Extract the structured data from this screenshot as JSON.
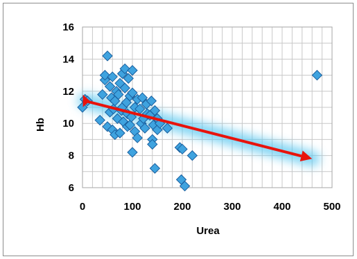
{
  "chart_data": {
    "type": "scatter",
    "xlabel": "Urea",
    "ylabel": "Hb",
    "xlim": [
      0,
      500
    ],
    "ylim": [
      6,
      16
    ],
    "x_ticks": [
      "0",
      "100",
      "200",
      "300",
      "400",
      "500"
    ],
    "y_ticks": [
      "6",
      "8",
      "10",
      "12",
      "14",
      "16"
    ],
    "grid": true,
    "legend": "none",
    "colors": {
      "marker_fill": "#3fa3df",
      "marker_stroke": "#1a5f9e",
      "trend_glow": "#5cc8f0",
      "arrow": "#e8130c",
      "grid": "#c8c8c8"
    },
    "points": [
      [
        0,
        11.0
      ],
      [
        5,
        11.5
      ],
      [
        10,
        11.4
      ],
      [
        35,
        10.2
      ],
      [
        40,
        11.8
      ],
      [
        45,
        12.7
      ],
      [
        45,
        13.0
      ],
      [
        50,
        14.2
      ],
      [
        50,
        9.8
      ],
      [
        55,
        10.7
      ],
      [
        55,
        12.3
      ],
      [
        58,
        11.6
      ],
      [
        60,
        12.9
      ],
      [
        60,
        9.6
      ],
      [
        62,
        10.9
      ],
      [
        65,
        11.4
      ],
      [
        65,
        9.3
      ],
      [
        68,
        12.0
      ],
      [
        70,
        10.3
      ],
      [
        72,
        11.8
      ],
      [
        75,
        12.5
      ],
      [
        75,
        9.4
      ],
      [
        78,
        10.8
      ],
      [
        80,
        13.1
      ],
      [
        80,
        11.0
      ],
      [
        82,
        10.1
      ],
      [
        85,
        13.4
      ],
      [
        85,
        12.2
      ],
      [
        88,
        11.3
      ],
      [
        90,
        10.6
      ],
      [
        90,
        9.8
      ],
      [
        92,
        12.8
      ],
      [
        95,
        11.7
      ],
      [
        95,
        9.9
      ],
      [
        98,
        10.4
      ],
      [
        100,
        13.3
      ],
      [
        100,
        11.9
      ],
      [
        100,
        8.2
      ],
      [
        105,
        11.0
      ],
      [
        105,
        9.5
      ],
      [
        110,
        11.5
      ],
      [
        110,
        9.1
      ],
      [
        115,
        10.9
      ],
      [
        118,
        10.0
      ],
      [
        120,
        11.6
      ],
      [
        122,
        10.3
      ],
      [
        125,
        9.7
      ],
      [
        128,
        11.2
      ],
      [
        130,
        10.6
      ],
      [
        135,
        10.5
      ],
      [
        138,
        11.4
      ],
      [
        140,
        9.0
      ],
      [
        140,
        8.7
      ],
      [
        142,
        9.9
      ],
      [
        145,
        10.8
      ],
      [
        145,
        7.2
      ],
      [
        150,
        10.3
      ],
      [
        150,
        9.6
      ],
      [
        155,
        10.0
      ],
      [
        170,
        9.7
      ],
      [
        195,
        8.5
      ],
      [
        198,
        6.5
      ],
      [
        200,
        8.4
      ],
      [
        205,
        6.1
      ],
      [
        220,
        8.0
      ],
      [
        470,
        13.0
      ]
    ],
    "trend_arrow": {
      "x1": 5,
      "y1": 11.4,
      "x2": 460,
      "y2": 7.8
    }
  }
}
